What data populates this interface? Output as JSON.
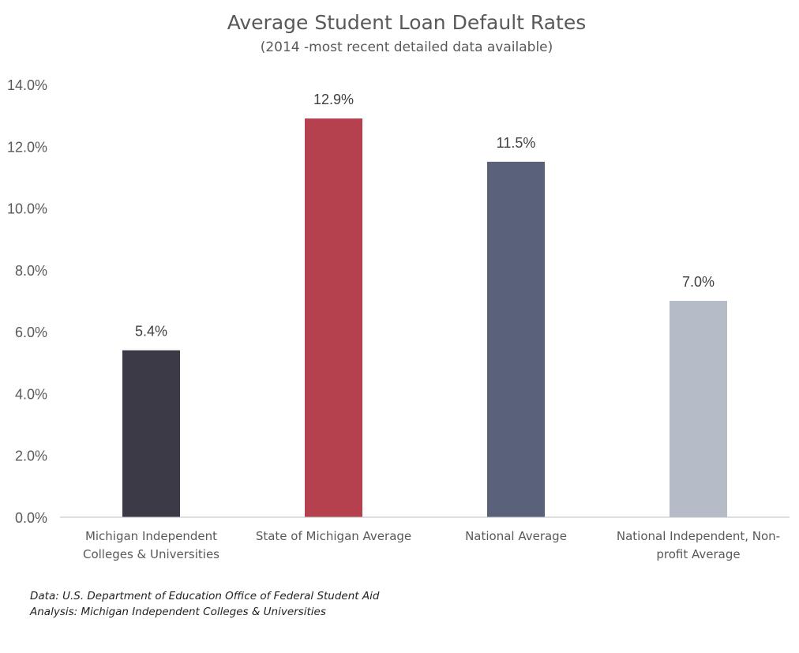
{
  "chart_data": {
    "type": "bar",
    "title": "Average Student Loan Default Rates",
    "subtitle": "(2014 -most recent detailed data available)",
    "categories": [
      [
        "Michigan Independent",
        "Colleges & Universities"
      ],
      [
        "State of Michigan Average"
      ],
      [
        "National Average"
      ],
      [
        "National Independent, Non-",
        "profit Average"
      ]
    ],
    "values": [
      5.4,
      12.9,
      11.5,
      7.0
    ],
    "data_labels": [
      "5.4%",
      "12.9%",
      "11.5%",
      "7.0%"
    ],
    "bar_colors": [
      "#3d3a47",
      "#b5414e",
      "#5a627a",
      "#b5bcc7"
    ],
    "ylim": [
      0,
      14
    ],
    "yticks": [
      0,
      2,
      4,
      6,
      8,
      10,
      12,
      14
    ],
    "ytick_labels": [
      "0.0%",
      "2.0%",
      "4.0%",
      "6.0%",
      "8.0%",
      "10.0%",
      "12.0%",
      "14.0%"
    ],
    "grid": false,
    "legend": "none"
  },
  "footnotes": {
    "source": "Data: U.S. Department of Education Office of Federal Student Aid",
    "analysis": "Analysis: Michigan Independent Colleges & Universities"
  }
}
